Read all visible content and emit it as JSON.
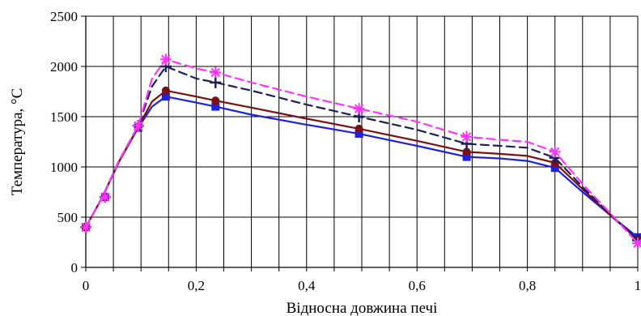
{
  "chart_data": {
    "type": "line",
    "xlabel": "Відносна довжина печі",
    "ylabel": "Температура, °C",
    "xlim": [
      0,
      1
    ],
    "ylim": [
      0,
      2500
    ],
    "x_ticks": [
      0,
      0.2,
      0.4,
      0.6,
      0.8,
      1
    ],
    "x_tick_labels": [
      "0",
      "0,2",
      "0,4",
      "0,6",
      "0,8",
      "1"
    ],
    "y_ticks": [
      0,
      500,
      1000,
      1500,
      2000,
      2500
    ],
    "y_tick_labels": [
      "0",
      "500",
      "1000",
      "1500",
      "2000",
      "2500"
    ],
    "x_minor_step": 0.05,
    "grid": true,
    "series": [
      {
        "color": "#1f1fe0",
        "dash": "solid",
        "marker": "square",
        "x": [
          0,
          0.03,
          0.06,
          0.095,
          0.12,
          0.145,
          0.2,
          0.235,
          0.3,
          0.4,
          0.495,
          0.6,
          0.69,
          0.75,
          0.8,
          0.85,
          0.9,
          0.95,
          1.0
        ],
        "y": [
          400,
          700,
          1050,
          1390,
          1600,
          1700,
          1640,
          1600,
          1520,
          1420,
          1330,
          1210,
          1100,
          1085,
          1060,
          990,
          750,
          520,
          300
        ],
        "markers_x": [
          0,
          0.035,
          0.095,
          0.145,
          0.235,
          0.495,
          0.69,
          0.85,
          1.0
        ],
        "markers_y": [
          400,
          700,
          1390,
          1700,
          1600,
          1330,
          1100,
          990,
          300
        ]
      },
      {
        "color": "#7b1010",
        "dash": "solid",
        "marker": "circle",
        "x": [
          0,
          0.03,
          0.06,
          0.095,
          0.12,
          0.145,
          0.2,
          0.235,
          0.3,
          0.4,
          0.495,
          0.6,
          0.69,
          0.75,
          0.8,
          0.85,
          0.9,
          0.95,
          1.0
        ],
        "y": [
          400,
          700,
          1050,
          1400,
          1650,
          1760,
          1700,
          1660,
          1590,
          1480,
          1380,
          1260,
          1150,
          1130,
          1110,
          1040,
          780,
          520,
          280
        ],
        "markers_x": [
          0,
          0.035,
          0.095,
          0.145,
          0.235,
          0.495,
          0.69,
          0.85,
          1.0
        ],
        "markers_y": [
          400,
          700,
          1400,
          1760,
          1660,
          1380,
          1150,
          1040,
          280
        ]
      },
      {
        "color": "#1a1f5e",
        "dash": "dashed",
        "marker": "plus",
        "x": [
          0,
          0.03,
          0.06,
          0.095,
          0.12,
          0.145,
          0.2,
          0.235,
          0.3,
          0.4,
          0.495,
          0.6,
          0.69,
          0.75,
          0.8,
          0.85,
          0.9,
          0.95,
          1.0
        ],
        "y": [
          400,
          700,
          1060,
          1410,
          1800,
          2000,
          1880,
          1840,
          1760,
          1620,
          1500,
          1370,
          1230,
          1210,
          1190,
          1090,
          800,
          530,
          270
        ],
        "markers_x": [
          0,
          0.035,
          0.095,
          0.145,
          0.235,
          0.495,
          0.69,
          0.85,
          1.0
        ],
        "markers_y": [
          400,
          700,
          1410,
          2000,
          1840,
          1500,
          1230,
          1090,
          270
        ]
      },
      {
        "color": "#ff33ff",
        "dash": "dashed",
        "marker": "asterisk",
        "x": [
          0,
          0.03,
          0.06,
          0.095,
          0.12,
          0.145,
          0.2,
          0.235,
          0.3,
          0.4,
          0.495,
          0.6,
          0.69,
          0.75,
          0.8,
          0.85,
          0.9,
          0.95,
          1.0
        ],
        "y": [
          400,
          700,
          1060,
          1410,
          1880,
          2070,
          1980,
          1940,
          1840,
          1700,
          1580,
          1450,
          1300,
          1270,
          1250,
          1150,
          830,
          540,
          240
        ],
        "markers_x": [
          0,
          0.035,
          0.095,
          0.145,
          0.235,
          0.495,
          0.69,
          0.85,
          1.0
        ],
        "markers_y": [
          400,
          700,
          1410,
          2070,
          1940,
          1580,
          1300,
          1150,
          240
        ]
      }
    ]
  }
}
